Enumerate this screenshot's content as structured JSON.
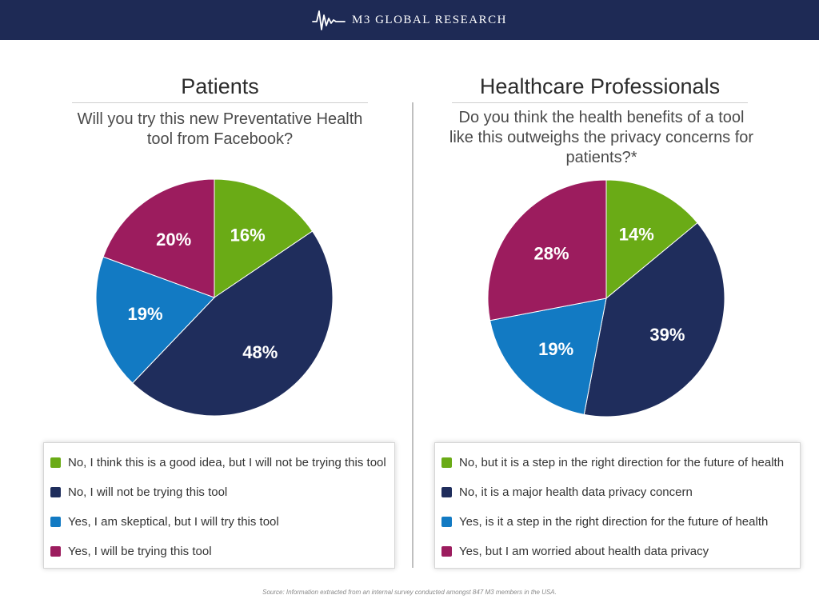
{
  "header": {
    "brand": "M3 GLOBAL RESEARCH",
    "logo_icon": "waveform-icon",
    "background_color": "#1e2a55"
  },
  "colors": {
    "green": "#6aab16",
    "navy": "#1f2d5c",
    "blue": "#127ac3",
    "magenta": "#9c1c5e"
  },
  "chart_data": [
    {
      "type": "pie",
      "title": "Patients",
      "subtitle": "Will you try this new Preventative Health tool from Facebook?",
      "slices": [
        {
          "label": "No, I think this is a good idea, but I will not be trying this tool",
          "value": 16,
          "display": "16%",
          "color": "#6aab16"
        },
        {
          "label": "No, I will not be trying this tool",
          "value": 48,
          "display": "48%",
          "color": "#1f2d5c"
        },
        {
          "label": "Yes, I am skeptical, but I will try this tool",
          "value": 19,
          "display": "19%",
          "color": "#127ac3"
        },
        {
          "label": "Yes, I will be trying this tool",
          "value": 20,
          "display": "20%",
          "color": "#9c1c5e"
        }
      ],
      "legend_order": [
        0,
        1,
        2,
        3
      ],
      "legend_placement": "bottom"
    },
    {
      "type": "pie",
      "title": "Healthcare Professionals",
      "subtitle": "Do you think the health benefits of a tool like this outweighs the privacy concerns for patients?*",
      "slices": [
        {
          "label": "No, but it is a step in the right direction for the future of health",
          "value": 14,
          "display": "14%",
          "color": "#6aab16"
        },
        {
          "label": "No, it is a major health data privacy concern",
          "value": 39,
          "display": "39%",
          "color": "#1f2d5c"
        },
        {
          "label": "Yes, is it a step in the right direction for the future of health",
          "value": 19,
          "display": "19%",
          "color": "#127ac3"
        },
        {
          "label": "Yes, but I am worried about health data privacy",
          "value": 28,
          "display": "28%",
          "color": "#9c1c5e"
        }
      ],
      "legend_order": [
        0,
        1,
        2,
        3
      ],
      "legend_placement": "bottom"
    }
  ],
  "source": "Source: Information extracted from an internal survey conducted amongst 847 M3 members in the USA."
}
